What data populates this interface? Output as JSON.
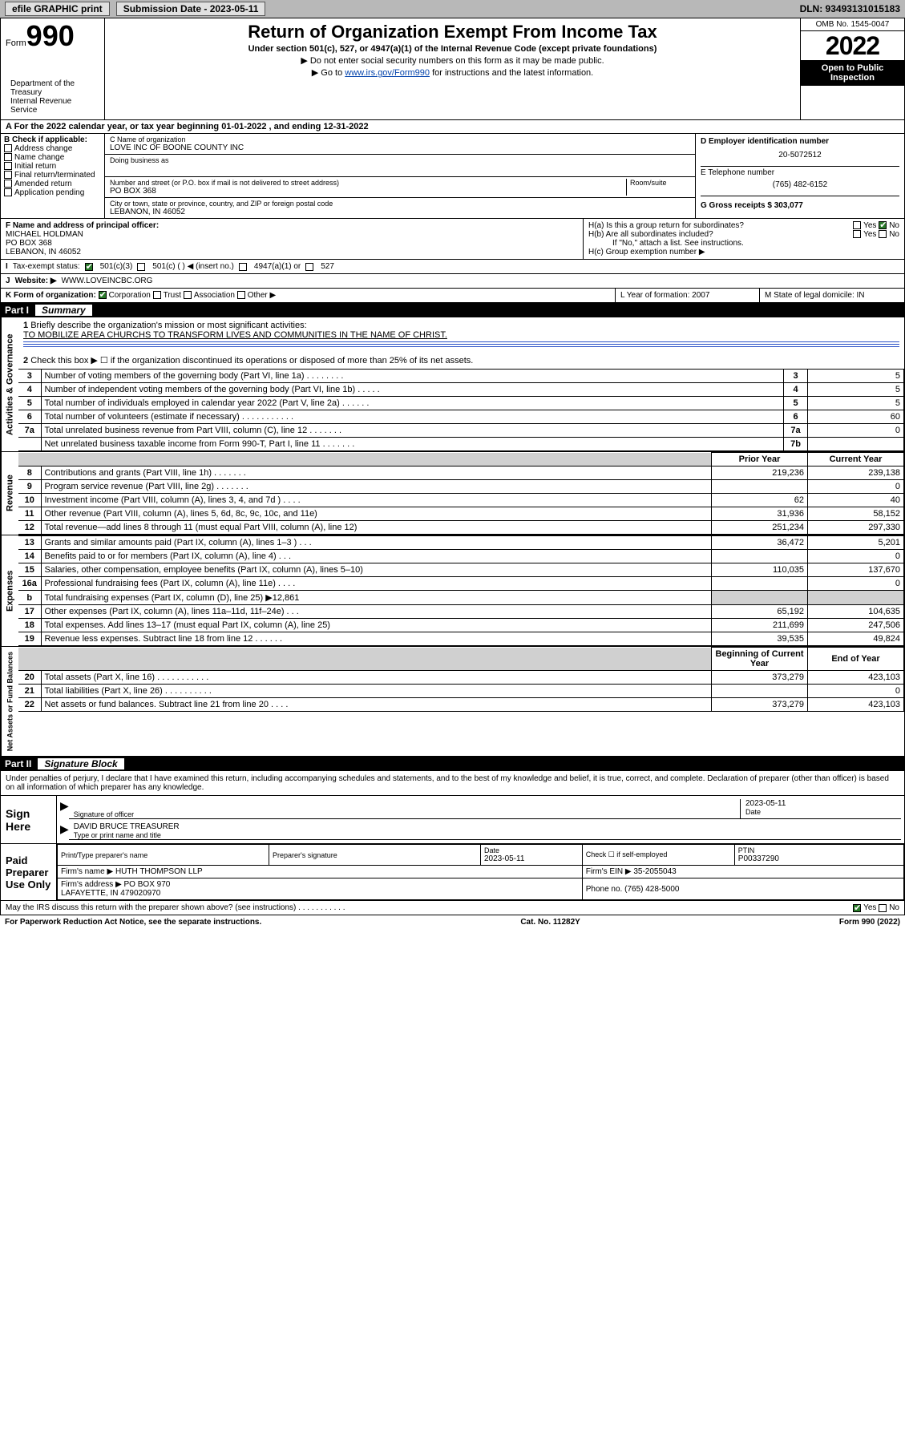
{
  "topbar": {
    "efile": "efile GRAPHIC print",
    "subdate_label": "Submission Date - 2023-05-11",
    "dln": "DLN: 93493131015183"
  },
  "header": {
    "form_prefix": "Form",
    "form_num": "990",
    "title": "Return of Organization Exempt From Income Tax",
    "subtitle": "Under section 501(c), 527, or 4947(a)(1) of the Internal Revenue Code (except private foundations)",
    "note1": "▶ Do not enter social security numbers on this form as it may be made public.",
    "note2_pre": "▶ Go to ",
    "note2_link": "www.irs.gov/Form990",
    "note2_post": " for instructions and the latest information.",
    "dept": "Department of the Treasury\nInternal Revenue Service",
    "omb": "OMB No. 1545-0047",
    "year": "2022",
    "opentopublic": "Open to Public Inspection"
  },
  "rowA": "A For the 2022 calendar year, or tax year beginning 01-01-2022    , and ending 12-31-2022",
  "colB": {
    "title": "B Check if applicable:",
    "items": [
      "Address change",
      "Name change",
      "Initial return",
      "Final return/terminated",
      "Amended return",
      "Application pending"
    ]
  },
  "colC": {
    "label_name": "C Name of organization",
    "name": "LOVE INC OF BOONE COUNTY INC",
    "dba_label": "Doing business as",
    "dba": "",
    "addr_label": "Number and street (or P.O. box if mail is not delivered to street address)",
    "room_label": "Room/suite",
    "addr": "PO BOX 368",
    "city_label": "City or town, state or province, country, and ZIP or foreign postal code",
    "city": "LEBANON, IN  46052"
  },
  "colR": {
    "d_label": "D Employer identification number",
    "d_val": "20-5072512",
    "e_label": "E Telephone number",
    "e_val": "(765) 482-6152",
    "g_label": "G Gross receipts $ 303,077"
  },
  "rowF": {
    "f_label": "F Name and address of principal officer:",
    "f_val": "MICHAEL HOLDMAN\nPO BOX 368\nLEBANON, IN  46052",
    "ha": "H(a)  Is this a group return for subordinates?",
    "hb": "H(b)  Are all subordinates included?",
    "hb_note": "If \"No,\" attach a list. See instructions.",
    "hc": "H(c)  Group exemption number ▶",
    "yes": "Yes",
    "no": "No"
  },
  "rowI": {
    "label": "Tax-exempt status:",
    "opt1": "501(c)(3)",
    "opt2": "501(c) (   ) ◀ (insert no.)",
    "opt3": "4947(a)(1) or",
    "opt4": "527"
  },
  "rowJ": {
    "label": "Website: ▶",
    "val": "WWW.LOVEINCBC.ORG"
  },
  "rowK": {
    "label": "K Form of organization:",
    "opts": [
      "Corporation",
      "Trust",
      "Association",
      "Other ▶"
    ],
    "l_label": "L Year of formation: 2007",
    "m_label": "M State of legal domicile: IN"
  },
  "part1": {
    "label": "Part I",
    "title": "Summary"
  },
  "summary": {
    "l1_label": "Briefly describe the organization's mission or most significant activities:",
    "l1_val": "TO MOBILIZE AREA CHURCHS TO TRANSFORM LIVES AND COMMUNITIES IN THE NAME OF CHRIST.",
    "l2": "Check this box ▶ ☐  if the organization discontinued its operations or disposed of more than 25% of its net assets.",
    "lines_gov": [
      {
        "n": "3",
        "d": "Number of voting members of the governing body (Part VI, line 1a)  .    .    .    .    .    .    .    .",
        "box": "3",
        "v": "5"
      },
      {
        "n": "4",
        "d": "Number of independent voting members of the governing body (Part VI, line 1b)   .    .    .    .    .",
        "box": "4",
        "v": "5"
      },
      {
        "n": "5",
        "d": "Total number of individuals employed in calendar year 2022 (Part V, line 2a)   .    .    .    .    .    .",
        "box": "5",
        "v": "5"
      },
      {
        "n": "6",
        "d": "Total number of volunteers (estimate if necessary)   .    .    .    .    .    .    .    .    .    .    .",
        "box": "6",
        "v": "60"
      },
      {
        "n": "7a",
        "d": "Total unrelated business revenue from Part VIII, column (C), line 12   .    .    .    .    .    .    .",
        "box": "7a",
        "v": "0"
      },
      {
        "n": "",
        "d": "Net unrelated business taxable income from Form 990-T, Part I, line 11   .    .    .    .    .    .    .",
        "box": "7b",
        "v": ""
      }
    ],
    "head_prior": "Prior Year",
    "head_curr": "Current Year",
    "rev": [
      {
        "n": "8",
        "d": "Contributions and grants (Part VIII, line 1h)   .    .    .    .    .    .    .",
        "p": "219,236",
        "c": "239,138"
      },
      {
        "n": "9",
        "d": "Program service revenue (Part VIII, line 2g)   .    .    .    .    .    .    .",
        "p": "",
        "c": "0"
      },
      {
        "n": "10",
        "d": "Investment income (Part VIII, column (A), lines 3, 4, and 7d )   .    .    .    .",
        "p": "62",
        "c": "40"
      },
      {
        "n": "11",
        "d": "Other revenue (Part VIII, column (A), lines 5, 6d, 8c, 9c, 10c, and 11e)",
        "p": "31,936",
        "c": "58,152"
      },
      {
        "n": "12",
        "d": "Total revenue—add lines 8 through 11 (must equal Part VIII, column (A), line 12)",
        "p": "251,234",
        "c": "297,330"
      }
    ],
    "exp": [
      {
        "n": "13",
        "d": "Grants and similar amounts paid (Part IX, column (A), lines 1–3 )   .    .    .",
        "p": "36,472",
        "c": "5,201"
      },
      {
        "n": "14",
        "d": "Benefits paid to or for members (Part IX, column (A), line 4)   .    .    .",
        "p": "",
        "c": "0"
      },
      {
        "n": "15",
        "d": "Salaries, other compensation, employee benefits (Part IX, column (A), lines 5–10)",
        "p": "110,035",
        "c": "137,670"
      },
      {
        "n": "16a",
        "d": "Professional fundraising fees (Part IX, column (A), line 11e)   .    .    .    .",
        "p": "",
        "c": "0"
      },
      {
        "n": "b",
        "d": "Total fundraising expenses (Part IX, column (D), line 25) ▶12,861",
        "p": "shaded",
        "c": "shaded"
      },
      {
        "n": "17",
        "d": "Other expenses (Part IX, column (A), lines 11a–11d, 11f–24e)   .    .    .",
        "p": "65,192",
        "c": "104,635"
      },
      {
        "n": "18",
        "d": "Total expenses. Add lines 13–17 (must equal Part IX, column (A), line 25)",
        "p": "211,699",
        "c": "247,506"
      },
      {
        "n": "19",
        "d": "Revenue less expenses. Subtract line 18 from line 12   .    .    .    .    .    .",
        "p": "39,535",
        "c": "49,824"
      }
    ],
    "head_begin": "Beginning of Current Year",
    "head_end": "End of Year",
    "net": [
      {
        "n": "20",
        "d": "Total assets (Part X, line 16)   .    .    .    .    .    .    .    .    .    .    .",
        "p": "373,279",
        "c": "423,103"
      },
      {
        "n": "21",
        "d": "Total liabilities (Part X, line 26)   .    .    .    .    .    .    .    .    .    .",
        "p": "",
        "c": "0"
      },
      {
        "n": "22",
        "d": "Net assets or fund balances. Subtract line 21 from line 20   .    .    .    .",
        "p": "373,279",
        "c": "423,103"
      }
    ]
  },
  "sidelabels": {
    "gov": "Activities & Governance",
    "rev": "Revenue",
    "exp": "Expenses",
    "net": "Net Assets or Fund Balances"
  },
  "part2": {
    "label": "Part II",
    "title": "Signature Block"
  },
  "sig": {
    "penalties": "Under penalties of perjury, I declare that I have examined this return, including accompanying schedules and statements, and to the best of my knowledge and belief, it is true, correct, and complete. Declaration of preparer (other than officer) is based on all information of which preparer has any knowledge.",
    "signhere": "Sign Here",
    "sig_officer": "Signature of officer",
    "date": "2023-05-11",
    "date_label": "Date",
    "name": "DAVID BRUCE  TREASURER",
    "name_label": "Type or print name and title",
    "paid": "Paid Preparer Use Only",
    "pth": [
      "Print/Type preparer's name",
      "Preparer's signature",
      "Date",
      "Check ☐ if self-employed",
      "PTIN"
    ],
    "ptv": [
      "",
      "",
      "2023-05-11",
      "",
      "P00337290"
    ],
    "firm_name_l": "Firm's name    ▶",
    "firm_name": "HUTH THOMPSON LLP",
    "firm_ein_l": "Firm's EIN ▶",
    "firm_ein": "35-2055043",
    "firm_addr_l": "Firm's address ▶",
    "firm_addr": "PO BOX 970\nLAFAYETTE, IN  479020970",
    "phone_l": "Phone no.",
    "phone": "(765) 428-5000",
    "discuss": "May the IRS discuss this return with the preparer shown above? (see instructions)    .    .    .    .    .    .    .    .    .    .    ."
  },
  "footer": {
    "left": "For Paperwork Reduction Act Notice, see the separate instructions.",
    "mid": "Cat. No. 11282Y",
    "right": "Form 990 (2022)"
  }
}
